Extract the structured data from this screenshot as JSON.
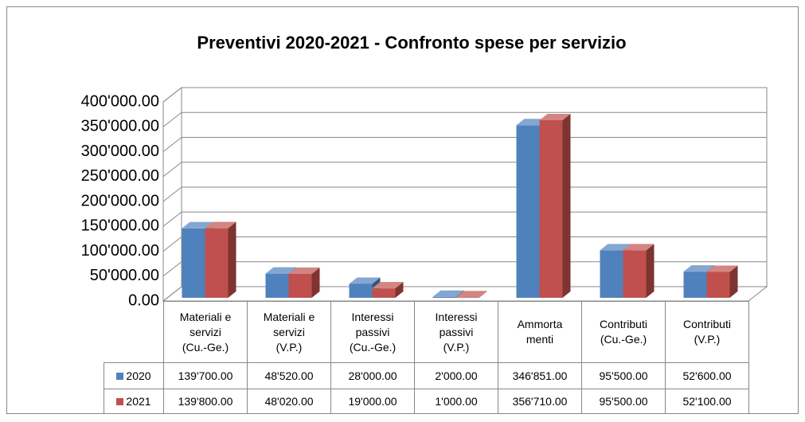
{
  "chart_data": {
    "type": "bar3d",
    "title": "Preventivi 2020-2021 - Confronto spese per servizio",
    "categories": [
      "Materiali e\nservizi\n(Cu.-Ge.)",
      "Materiali e\nservizi\n(V.P.)",
      "Interessi\npassivi\n(Cu.-Ge.)",
      "Interessi\npassivi\n(V.P.)",
      "Ammorta\nmenti",
      "Contributi\n(Cu.-Ge.)",
      "Contributi\n(V.P.)"
    ],
    "series": [
      {
        "name": "2020",
        "color": "#4f81bd",
        "values": [
          139700,
          48520,
          28000,
          2000,
          346851,
          95500,
          52600
        ],
        "value_labels": [
          "139'700.00",
          "48'520.00",
          "28'000.00",
          "2'000.00",
          "346'851.00",
          "95'500.00",
          "52'600.00"
        ]
      },
      {
        "name": "2021",
        "color": "#c0504d",
        "values": [
          139800,
          48020,
          19000,
          1000,
          356710,
          95500,
          52100
        ],
        "value_labels": [
          "139'800.00",
          "48'020.00",
          "19'000.00",
          "1'000.00",
          "356'710.00",
          "95'500.00",
          "52'100.00"
        ]
      }
    ],
    "ylim": [
      0,
      400000
    ],
    "yticks": [
      {
        "value": 0,
        "label": "0.00"
      },
      {
        "value": 50000,
        "label": "50'000.00"
      },
      {
        "value": 100000,
        "label": "100'000.00"
      },
      {
        "value": 150000,
        "label": "150'000.00"
      },
      {
        "value": 200000,
        "label": "200'000.00"
      },
      {
        "value": 250000,
        "label": "250'000.00"
      },
      {
        "value": 300000,
        "label": "300'000.00"
      },
      {
        "value": 350000,
        "label": "350'000.00"
      },
      {
        "value": 400000,
        "label": "400'000.00"
      }
    ],
    "grid": true
  }
}
